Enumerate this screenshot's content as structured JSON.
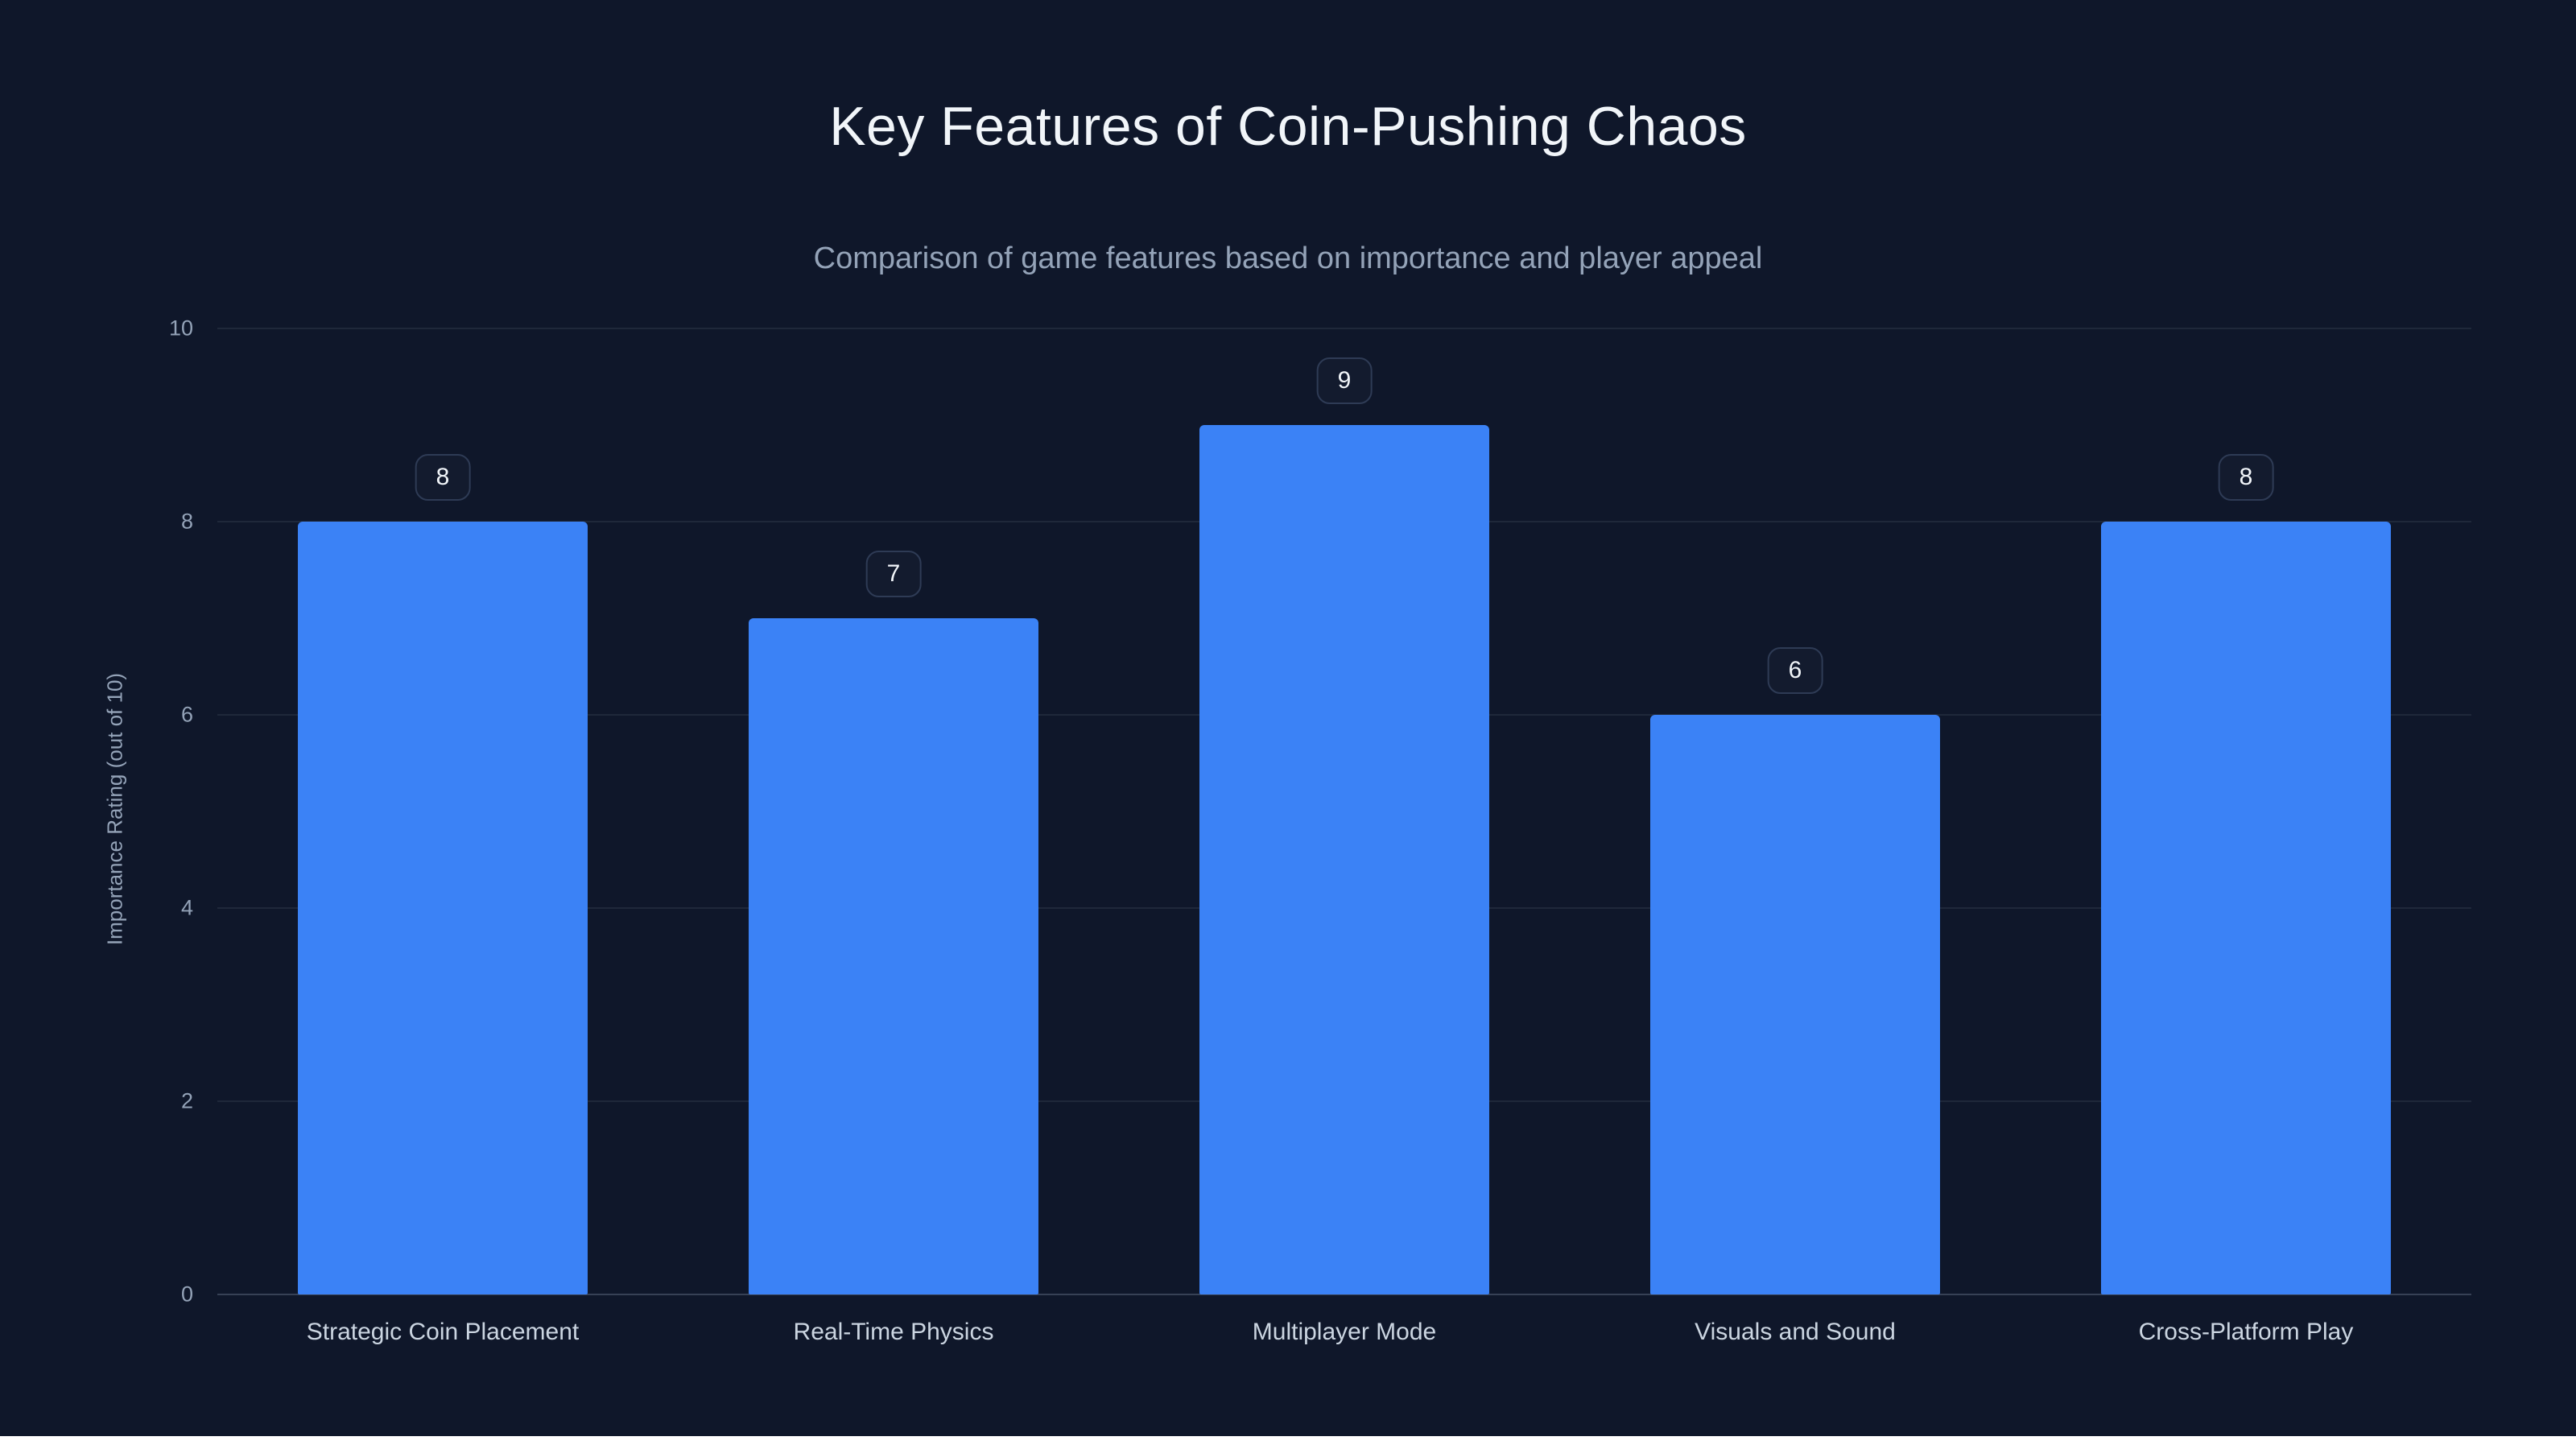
{
  "page": {
    "background": "#0f172a"
  },
  "chart_data": {
    "type": "bar",
    "title": "Key Features of Coin-Pushing Chaos",
    "subtitle": "Comparison of game features based on importance and player appeal",
    "categories": [
      "Strategic Coin Placement",
      "Real-Time Physics",
      "Multiplayer Mode",
      "Visuals and Sound",
      "Cross-Platform Play"
    ],
    "values": [
      8,
      7,
      9,
      6,
      8
    ],
    "xlabel": "",
    "ylabel": "Importance Rating (out of 10)",
    "ylim": [
      0,
      10
    ],
    "yticks": [
      0,
      2,
      4,
      6,
      8,
      10
    ],
    "bar_color": "#3b82f6",
    "grid": true,
    "legend": "none"
  }
}
